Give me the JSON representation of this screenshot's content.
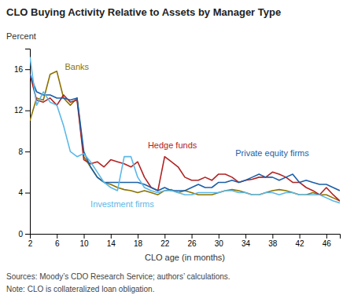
{
  "chart_data": {
    "type": "line",
    "title": "CLO Buying Activity Relative to Assets by Manager Type",
    "ylabel": "Percent",
    "xlabel": "CLO age (in months)",
    "footnotes": [
      "Sources: Moody’s CDO Research Service; authors’ calculations.",
      "Note: CLO is collateralized loan obligation."
    ],
    "xlim": [
      2,
      48
    ],
    "ylim": [
      0,
      18
    ],
    "xticks": [
      2,
      6,
      10,
      14,
      18,
      22,
      26,
      30,
      34,
      38,
      42,
      46
    ],
    "yticks": [
      0,
      4,
      8,
      12,
      16
    ],
    "grid": false,
    "x": [
      2,
      3,
      4,
      5,
      6,
      7,
      8,
      9,
      10,
      11,
      12,
      13,
      14,
      15,
      16,
      17,
      18,
      19,
      20,
      21,
      22,
      23,
      24,
      25,
      26,
      27,
      28,
      29,
      30,
      31,
      32,
      33,
      34,
      35,
      36,
      37,
      38,
      39,
      40,
      41,
      42,
      43,
      44,
      45,
      46,
      47,
      48
    ],
    "series": [
      {
        "name": "Banks",
        "color": "#8B7300",
        "values": [
          11.0,
          13.2,
          13.0,
          15.5,
          15.8,
          13.2,
          12.5,
          13.2,
          7.5,
          6.5,
          5.5,
          5.0,
          4.8,
          4.5,
          4.3,
          4.2,
          4.0,
          4.2,
          4.0,
          3.8,
          4.2,
          4.3,
          4.0,
          4.2,
          4.0,
          3.8,
          3.8,
          3.8,
          4.0,
          4.2,
          4.3,
          4.2,
          4.0,
          3.8,
          3.8,
          4.0,
          4.2,
          4.3,
          4.2,
          4.0,
          3.8,
          3.8,
          4.0,
          3.8,
          3.8,
          3.5,
          3.2
        ]
      },
      {
        "name": "Hedge funds",
        "color": "#B22222",
        "values": [
          15.5,
          13.0,
          12.8,
          13.2,
          12.5,
          13.5,
          12.8,
          13.0,
          7.2,
          6.8,
          7.0,
          6.5,
          7.2,
          7.0,
          6.8,
          6.5,
          7.0,
          5.5,
          4.5,
          4.2,
          7.5,
          7.0,
          6.5,
          5.5,
          5.2,
          5.2,
          5.5,
          5.2,
          5.8,
          5.8,
          5.5,
          5.0,
          5.2,
          5.3,
          5.5,
          5.5,
          6.0,
          5.8,
          5.5,
          5.0,
          5.0,
          4.5,
          4.2,
          3.8,
          4.5,
          3.8,
          3.2
        ]
      },
      {
        "name": "Private equity firms",
        "color": "#1B5FA8",
        "values": [
          15.5,
          13.8,
          13.5,
          13.5,
          13.2,
          13.2,
          13.0,
          13.2,
          8.0,
          6.5,
          5.5,
          5.0,
          5.0,
          5.0,
          5.0,
          5.0,
          5.0,
          4.8,
          4.5,
          4.2,
          4.5,
          4.2,
          4.2,
          4.2,
          4.5,
          4.8,
          4.5,
          4.5,
          5.0,
          5.0,
          5.2,
          5.0,
          5.2,
          5.5,
          5.8,
          5.5,
          5.5,
          5.2,
          5.5,
          5.8,
          5.0,
          5.2,
          5.0,
          4.8,
          4.8,
          4.5,
          4.2
        ]
      },
      {
        "name": "Investment firms",
        "color": "#5BB8E8",
        "values": [
          17.2,
          12.5,
          13.8,
          12.8,
          12.5,
          10.5,
          8.0,
          7.5,
          7.8,
          7.0,
          6.0,
          5.0,
          4.5,
          4.2,
          7.5,
          7.5,
          5.5,
          4.5,
          4.2,
          4.0,
          4.2,
          4.2,
          4.0,
          3.8,
          3.8,
          4.0,
          4.0,
          4.0,
          4.0,
          4.2,
          4.2,
          4.0,
          4.0,
          3.8,
          3.8,
          4.0,
          4.0,
          3.8,
          4.0,
          4.0,
          3.8,
          3.8,
          3.8,
          3.8,
          3.5,
          3.2,
          3.0
        ]
      }
    ],
    "annotations": [
      {
        "text": "Banks",
        "x": 7.2,
        "y": 16.2,
        "color": "#8B7300"
      },
      {
        "text": "Hedge funds",
        "x": 19.5,
        "y": 8.5,
        "color": "#B22222"
      },
      {
        "text": "Private equity firms",
        "x": 32.5,
        "y": 7.8,
        "color": "#1B5FA8"
      },
      {
        "text": "Investment firms",
        "x": 11.0,
        "y": 2.8,
        "color": "#5BB8E8"
      }
    ]
  }
}
